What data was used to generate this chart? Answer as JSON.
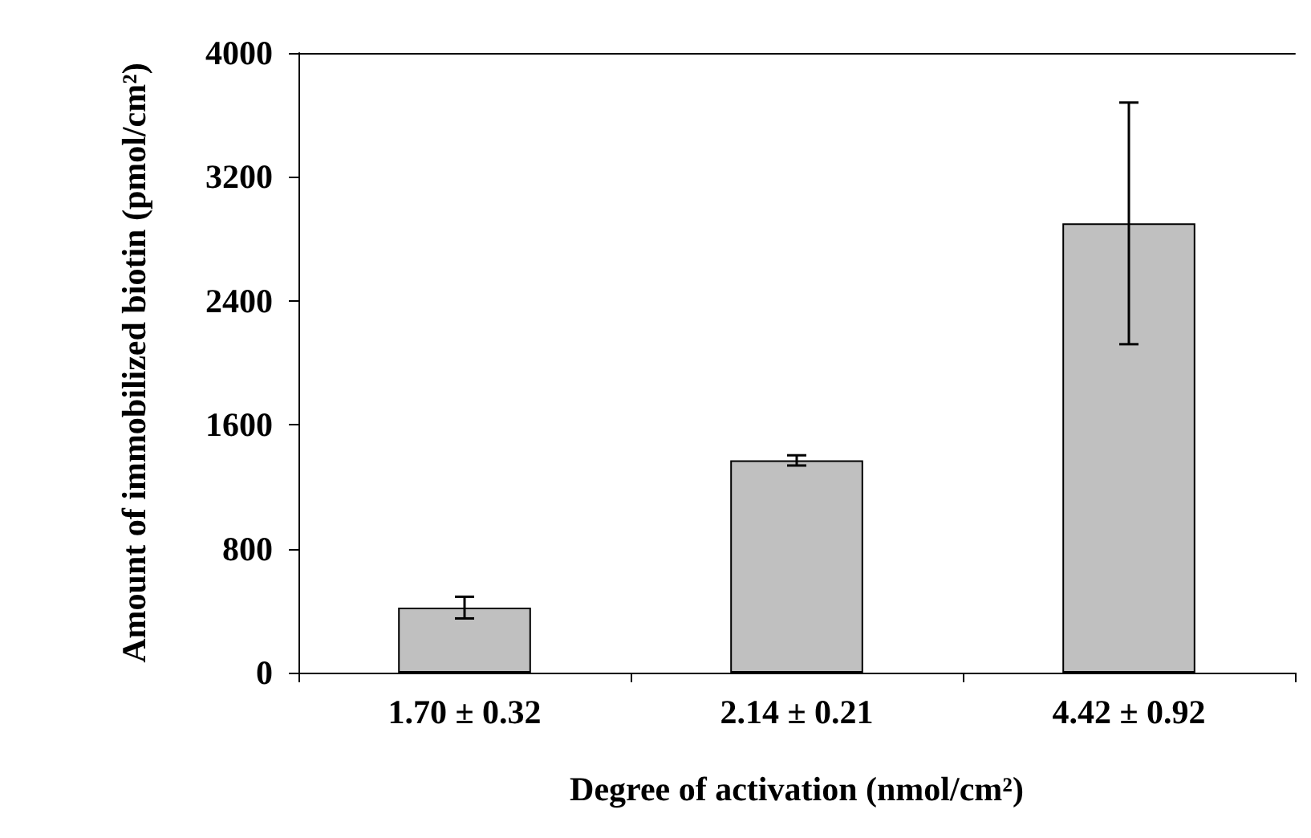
{
  "chart_data": {
    "type": "bar",
    "xlabel": "Degree of activation (nmol/cm²)",
    "ylabel": "Amount of immobilized biotin (pmol/cm²)",
    "categories": [
      "1.70 ± 0.32",
      "2.14 ± 0.21",
      "4.42 ± 0.92"
    ],
    "values": [
      420,
      1370,
      2900
    ],
    "errors": [
      70,
      33,
      780
    ],
    "color": "#c0c0c0",
    "ylim": [
      0,
      4000
    ],
    "yticks": [
      0,
      800,
      1600,
      2400,
      3200,
      4000
    ],
    "grid": false
  }
}
